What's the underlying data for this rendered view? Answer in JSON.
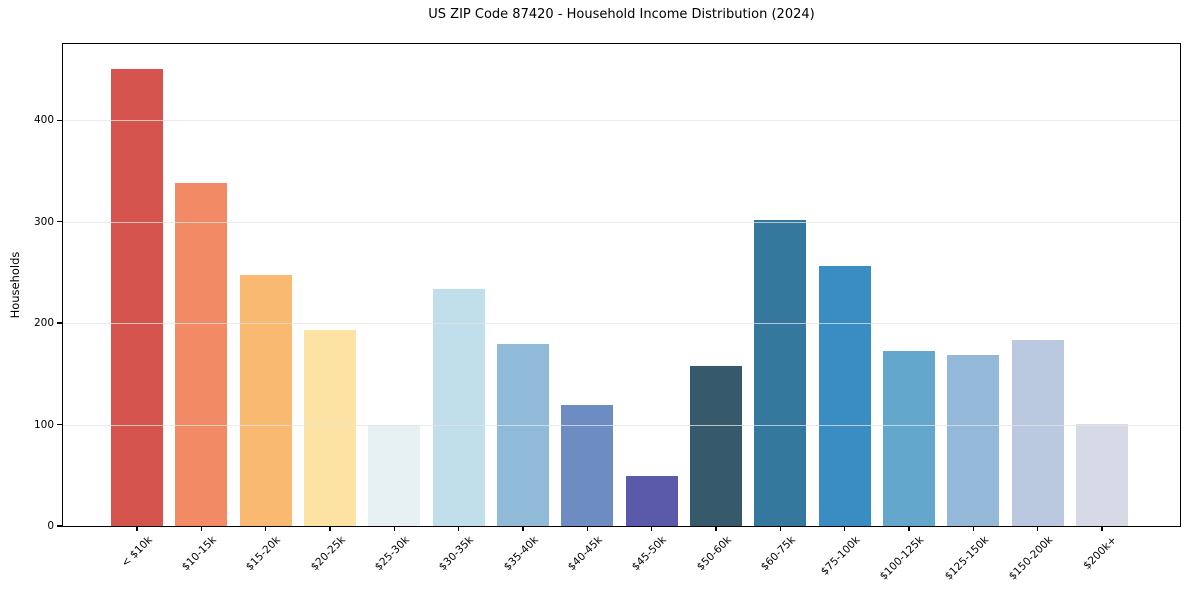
{
  "chart_data": {
    "type": "bar",
    "title": "US ZIP Code 87420 - Household Income Distribution (2024)",
    "xlabel": "",
    "ylabel": "Households",
    "categories": [
      "< $10k",
      "$10-15k",
      "$15-20k",
      "$20-25k",
      "$25-30k",
      "$30-35k",
      "$35-40k",
      "$40-45k",
      "$45-50k",
      "$50-60k",
      "$60-75k",
      "$75-100k",
      "$100-125k",
      "$125-150k",
      "$150-200k",
      "$200k+"
    ],
    "values": [
      450,
      338,
      247,
      193,
      100,
      234,
      179,
      119,
      49,
      158,
      302,
      256,
      173,
      169,
      183,
      101
    ],
    "bar_colors": [
      "#d6544e",
      "#f28a66",
      "#fab971",
      "#fde3a3",
      "#e7f1f4",
      "#c1dfeb",
      "#90bad8",
      "#6d8cc2",
      "#5b59aa",
      "#36596b",
      "#35789e",
      "#3a8dc3",
      "#64a7cd",
      "#94b8d8",
      "#bac8e0",
      "#d8d9e7"
    ],
    "yticks": [
      0,
      100,
      200,
      300,
      400
    ],
    "ylim": [
      0,
      475
    ],
    "grid": "horizontal-gridlines-over-bars",
    "gridline_color": "#e8e8e8",
    "legend": "none",
    "background": "#ffffff",
    "xtick_rotation": 45
  }
}
